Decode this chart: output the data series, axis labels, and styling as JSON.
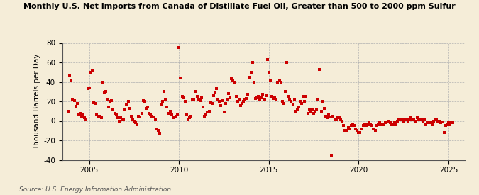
{
  "title": "Monthly U.S. Net Imports from Canada of Distillate Fuel Oil, Greater than 500 to 2000 ppm Sulfur",
  "ylabel": "Thousand Barrels per Day",
  "source": "Source: U.S. Energy Information Administration",
  "background_color": "#f5edd8",
  "scatter_color": "#cc0000",
  "marker": "s",
  "marker_size": 5,
  "ylim": [
    -40,
    80
  ],
  "yticks": [
    -40,
    -20,
    0,
    20,
    40,
    60,
    80
  ],
  "xlim_start": 2003.5,
  "xlim_end": 2025.9,
  "xticks": [
    2005,
    2010,
    2015,
    2020,
    2025
  ],
  "vlines": [
    2005,
    2010,
    2015,
    2020,
    2025
  ],
  "data": [
    [
      2003.83,
      10
    ],
    [
      2003.92,
      47
    ],
    [
      2004.0,
      42
    ],
    [
      2004.08,
      22
    ],
    [
      2004.17,
      21
    ],
    [
      2004.25,
      15
    ],
    [
      2004.33,
      18
    ],
    [
      2004.42,
      7
    ],
    [
      2004.5,
      8
    ],
    [
      2004.58,
      5
    ],
    [
      2004.67,
      7
    ],
    [
      2004.75,
      3
    ],
    [
      2004.83,
      2
    ],
    [
      2004.92,
      33
    ],
    [
      2005.0,
      34
    ],
    [
      2005.08,
      50
    ],
    [
      2005.17,
      51
    ],
    [
      2005.25,
      19
    ],
    [
      2005.33,
      18
    ],
    [
      2005.42,
      6
    ],
    [
      2005.5,
      5
    ],
    [
      2005.58,
      5
    ],
    [
      2005.67,
      3
    ],
    [
      2005.75,
      40
    ],
    [
      2005.83,
      29
    ],
    [
      2005.92,
      30
    ],
    [
      2006.0,
      22
    ],
    [
      2006.08,
      14
    ],
    [
      2006.17,
      20
    ],
    [
      2006.25,
      21
    ],
    [
      2006.33,
      12
    ],
    [
      2006.42,
      8
    ],
    [
      2006.5,
      6
    ],
    [
      2006.58,
      3
    ],
    [
      2006.67,
      0
    ],
    [
      2006.75,
      3
    ],
    [
      2006.83,
      2
    ],
    [
      2006.92,
      2
    ],
    [
      2007.0,
      12
    ],
    [
      2007.08,
      17
    ],
    [
      2007.17,
      20
    ],
    [
      2007.25,
      13
    ],
    [
      2007.33,
      5
    ],
    [
      2007.42,
      1
    ],
    [
      2007.5,
      0
    ],
    [
      2007.58,
      -2
    ],
    [
      2007.67,
      -3
    ],
    [
      2007.75,
      5
    ],
    [
      2007.83,
      4
    ],
    [
      2007.92,
      8
    ],
    [
      2008.0,
      21
    ],
    [
      2008.08,
      20
    ],
    [
      2008.17,
      13
    ],
    [
      2008.25,
      14
    ],
    [
      2008.33,
      8
    ],
    [
      2008.42,
      6
    ],
    [
      2008.5,
      5
    ],
    [
      2008.58,
      4
    ],
    [
      2008.67,
      2
    ],
    [
      2008.75,
      -8
    ],
    [
      2008.83,
      -10
    ],
    [
      2008.92,
      -13
    ],
    [
      2009.0,
      17
    ],
    [
      2009.08,
      20
    ],
    [
      2009.17,
      30
    ],
    [
      2009.25,
      22
    ],
    [
      2009.33,
      14
    ],
    [
      2009.42,
      8
    ],
    [
      2009.5,
      10
    ],
    [
      2009.58,
      6
    ],
    [
      2009.67,
      3
    ],
    [
      2009.75,
      4
    ],
    [
      2009.83,
      5
    ],
    [
      2009.92,
      6
    ],
    [
      2010.0,
      75
    ],
    [
      2010.08,
      44
    ],
    [
      2010.17,
      25
    ],
    [
      2010.25,
      24
    ],
    [
      2010.33,
      20
    ],
    [
      2010.42,
      7
    ],
    [
      2010.5,
      2
    ],
    [
      2010.58,
      3
    ],
    [
      2010.67,
      5
    ],
    [
      2010.75,
      22
    ],
    [
      2010.83,
      22
    ],
    [
      2010.92,
      30
    ],
    [
      2011.0,
      25
    ],
    [
      2011.08,
      22
    ],
    [
      2011.17,
      21
    ],
    [
      2011.25,
      24
    ],
    [
      2011.33,
      14
    ],
    [
      2011.42,
      5
    ],
    [
      2011.5,
      7
    ],
    [
      2011.58,
      9
    ],
    [
      2011.67,
      10
    ],
    [
      2011.75,
      19
    ],
    [
      2011.83,
      18
    ],
    [
      2011.92,
      26
    ],
    [
      2012.0,
      29
    ],
    [
      2012.08,
      33
    ],
    [
      2012.17,
      22
    ],
    [
      2012.25,
      20
    ],
    [
      2012.33,
      16
    ],
    [
      2012.42,
      21
    ],
    [
      2012.5,
      9
    ],
    [
      2012.58,
      18
    ],
    [
      2012.67,
      22
    ],
    [
      2012.75,
      28
    ],
    [
      2012.83,
      24
    ],
    [
      2012.92,
      43
    ],
    [
      2013.0,
      42
    ],
    [
      2013.08,
      40
    ],
    [
      2013.17,
      25
    ],
    [
      2013.25,
      20
    ],
    [
      2013.33,
      22
    ],
    [
      2013.42,
      16
    ],
    [
      2013.5,
      18
    ],
    [
      2013.58,
      20
    ],
    [
      2013.67,
      22
    ],
    [
      2013.75,
      23
    ],
    [
      2013.83,
      27
    ],
    [
      2013.92,
      45
    ],
    [
      2014.0,
      50
    ],
    [
      2014.08,
      60
    ],
    [
      2014.17,
      40
    ],
    [
      2014.25,
      23
    ],
    [
      2014.33,
      24
    ],
    [
      2014.42,
      25
    ],
    [
      2014.5,
      22
    ],
    [
      2014.58,
      24
    ],
    [
      2014.67,
      27
    ],
    [
      2014.75,
      22
    ],
    [
      2014.83,
      26
    ],
    [
      2014.92,
      63
    ],
    [
      2015.0,
      50
    ],
    [
      2015.08,
      42
    ],
    [
      2015.17,
      25
    ],
    [
      2015.25,
      23
    ],
    [
      2015.33,
      24
    ],
    [
      2015.42,
      22
    ],
    [
      2015.5,
      40
    ],
    [
      2015.58,
      42
    ],
    [
      2015.67,
      40
    ],
    [
      2015.75,
      20
    ],
    [
      2015.83,
      18
    ],
    [
      2015.92,
      30
    ],
    [
      2016.0,
      60
    ],
    [
      2016.08,
      25
    ],
    [
      2016.17,
      22
    ],
    [
      2016.25,
      20
    ],
    [
      2016.33,
      17
    ],
    [
      2016.42,
      22
    ],
    [
      2016.5,
      10
    ],
    [
      2016.58,
      12
    ],
    [
      2016.67,
      14
    ],
    [
      2016.75,
      20
    ],
    [
      2016.83,
      18
    ],
    [
      2016.92,
      25
    ],
    [
      2017.0,
      20
    ],
    [
      2017.08,
      25
    ],
    [
      2017.17,
      8
    ],
    [
      2017.25,
      12
    ],
    [
      2017.33,
      10
    ],
    [
      2017.42,
      12
    ],
    [
      2017.5,
      8
    ],
    [
      2017.58,
      10
    ],
    [
      2017.67,
      12
    ],
    [
      2017.75,
      22
    ],
    [
      2017.83,
      53
    ],
    [
      2017.92,
      10
    ],
    [
      2018.0,
      20
    ],
    [
      2018.08,
      13
    ],
    [
      2018.17,
      5
    ],
    [
      2018.25,
      3
    ],
    [
      2018.33,
      7
    ],
    [
      2018.42,
      4
    ],
    [
      2018.5,
      -35
    ],
    [
      2018.58,
      5
    ],
    [
      2018.67,
      2
    ],
    [
      2018.75,
      2
    ],
    [
      2018.83,
      3
    ],
    [
      2018.92,
      3
    ],
    [
      2019.0,
      2
    ],
    [
      2019.08,
      0
    ],
    [
      2019.17,
      -5
    ],
    [
      2019.25,
      -10
    ],
    [
      2019.33,
      -10
    ],
    [
      2019.42,
      -7
    ],
    [
      2019.5,
      -8
    ],
    [
      2019.58,
      -5
    ],
    [
      2019.67,
      -3
    ],
    [
      2019.75,
      -5
    ],
    [
      2019.83,
      -8
    ],
    [
      2019.92,
      -10
    ],
    [
      2020.0,
      -12
    ],
    [
      2020.08,
      -12
    ],
    [
      2020.17,
      -8
    ],
    [
      2020.25,
      -5
    ],
    [
      2020.33,
      -3
    ],
    [
      2020.42,
      -5
    ],
    [
      2020.5,
      -3
    ],
    [
      2020.58,
      -2
    ],
    [
      2020.67,
      -3
    ],
    [
      2020.75,
      -5
    ],
    [
      2020.83,
      -8
    ],
    [
      2020.92,
      -10
    ],
    [
      2021.0,
      -5
    ],
    [
      2021.08,
      -3
    ],
    [
      2021.17,
      -2
    ],
    [
      2021.25,
      -3
    ],
    [
      2021.33,
      -4
    ],
    [
      2021.42,
      -3
    ],
    [
      2021.5,
      -2
    ],
    [
      2021.58,
      -1
    ],
    [
      2021.67,
      0
    ],
    [
      2021.75,
      -2
    ],
    [
      2021.83,
      -3
    ],
    [
      2021.92,
      -4
    ],
    [
      2022.0,
      -2
    ],
    [
      2022.08,
      -3
    ],
    [
      2022.17,
      0
    ],
    [
      2022.25,
      1
    ],
    [
      2022.33,
      2
    ],
    [
      2022.42,
      1
    ],
    [
      2022.5,
      0
    ],
    [
      2022.58,
      2
    ],
    [
      2022.67,
      1
    ],
    [
      2022.75,
      0
    ],
    [
      2022.83,
      2
    ],
    [
      2022.92,
      3
    ],
    [
      2023.0,
      2
    ],
    [
      2023.08,
      1
    ],
    [
      2023.17,
      0
    ],
    [
      2023.25,
      3
    ],
    [
      2023.33,
      2
    ],
    [
      2023.42,
      1
    ],
    [
      2023.5,
      2
    ],
    [
      2023.58,
      0
    ],
    [
      2023.67,
      1
    ],
    [
      2023.75,
      -3
    ],
    [
      2023.83,
      -2
    ],
    [
      2023.92,
      -2
    ],
    [
      2024.0,
      -2
    ],
    [
      2024.08,
      -3
    ],
    [
      2024.17,
      0
    ],
    [
      2024.25,
      2
    ],
    [
      2024.33,
      1
    ],
    [
      2024.42,
      -1
    ],
    [
      2024.5,
      0
    ],
    [
      2024.58,
      -2
    ],
    [
      2024.67,
      -1
    ],
    [
      2024.75,
      -12
    ],
    [
      2024.83,
      -5
    ],
    [
      2024.92,
      -4
    ],
    [
      2025.0,
      -2
    ],
    [
      2025.08,
      -3
    ],
    [
      2025.17,
      -1
    ],
    [
      2025.25,
      -2
    ]
  ]
}
